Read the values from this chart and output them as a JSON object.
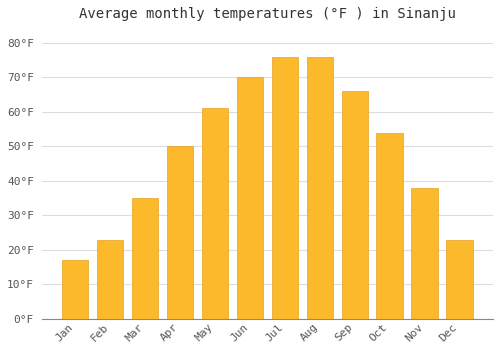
{
  "months": [
    "Jan",
    "Feb",
    "Mar",
    "Apr",
    "May",
    "Jun",
    "Jul",
    "Aug",
    "Sep",
    "Oct",
    "Nov",
    "Dec"
  ],
  "values": [
    17,
    23,
    35,
    50,
    61,
    70,
    76,
    76,
    66,
    54,
    38,
    23
  ],
  "bar_color": "#FDB92C",
  "bar_edge_color": "#E8A020",
  "title": "Average monthly temperatures (°F ) in Sinanju",
  "ylim": [
    0,
    84
  ],
  "yticks": [
    0,
    10,
    20,
    30,
    40,
    50,
    60,
    70,
    80
  ],
  "ytick_labels": [
    "0°F",
    "10°F",
    "20°F",
    "30°F",
    "40°F",
    "50°F",
    "60°F",
    "70°F",
    "80°F"
  ],
  "background_color": "#FFFFFF",
  "grid_color": "#DDDDDD",
  "title_fontsize": 10,
  "tick_fontsize": 8,
  "font_family": "monospace",
  "bar_width": 0.75
}
